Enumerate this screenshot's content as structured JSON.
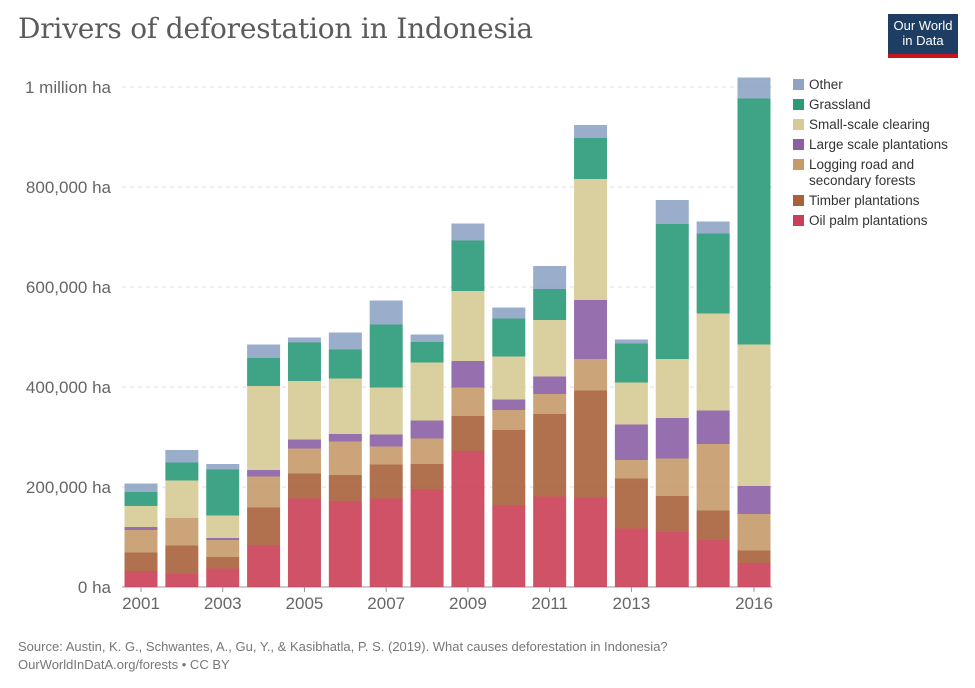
{
  "header": {
    "title": "Drivers of deforestation in Indonesia"
  },
  "logo": {
    "line1": "Our World",
    "line2": "in Data"
  },
  "footer": {
    "source": "Source: Austin, K. G., Schwantes, A., Gu, Y., & Kasibhatla, P. S. (2019). What causes deforestation in Indonesia?",
    "link": "OurWorldInDatA.org/forests • CC BY"
  },
  "chart_data": {
    "type": "bar",
    "stacked": true,
    "categories": [
      "2001",
      "2002",
      "2003",
      "2004",
      "2005",
      "2006",
      "2007",
      "2008",
      "2009",
      "2010",
      "2011",
      "2012",
      "2013",
      "2014",
      "2015",
      "2016"
    ],
    "x_tick_labels": [
      "2001",
      "2003",
      "2005",
      "2007",
      "2009",
      "2011",
      "2013",
      "2016"
    ],
    "y_ticks": [
      {
        "value": 0,
        "label": "0 ha"
      },
      {
        "value": 200000,
        "label": "200,000 ha"
      },
      {
        "value": 400000,
        "label": "400,000 ha"
      },
      {
        "value": 600000,
        "label": "600,000 ha"
      },
      {
        "value": 800000,
        "label": "800,000 ha"
      },
      {
        "value": 1000000,
        "label": "1 million ha"
      }
    ],
    "ylim": [
      0,
      1000000
    ],
    "grid": "horizontal dashed",
    "legend_position": "right",
    "series": [
      {
        "name": "Oil palm plantations",
        "color": "#ca3f57",
        "values": [
          32000,
          26000,
          37000,
          84000,
          177000,
          172000,
          177000,
          196000,
          272000,
          164000,
          181000,
          179000,
          117000,
          110000,
          94000,
          48000
        ]
      },
      {
        "name": "Timber plantations",
        "color": "#a9613b",
        "values": [
          37000,
          57000,
          23000,
          75000,
          50000,
          52000,
          68000,
          50000,
          70000,
          150000,
          165000,
          214000,
          100000,
          72000,
          59000,
          25000
        ]
      },
      {
        "name": "Logging road and secondary forests",
        "color": "#c79a6a",
        "values": [
          45000,
          55000,
          34000,
          62000,
          50000,
          67000,
          36000,
          51000,
          57000,
          40000,
          40000,
          63000,
          37000,
          75000,
          133000,
          73000
        ]
      },
      {
        "name": "Large scale plantations",
        "color": "#8b5fa5",
        "values": [
          6000,
          0,
          4000,
          13000,
          18000,
          15000,
          24000,
          36000,
          53000,
          21000,
          35000,
          118000,
          71000,
          81000,
          67000,
          56000
        ]
      },
      {
        "name": "Small-scale clearing",
        "color": "#d6cb95",
        "values": [
          42000,
          75000,
          45000,
          168000,
          117000,
          111000,
          94000,
          116000,
          140000,
          86000,
          113000,
          242000,
          84000,
          118000,
          194000,
          283000
        ]
      },
      {
        "name": "Grassland",
        "color": "#2a9a78",
        "values": [
          28000,
          36000,
          92000,
          56000,
          77000,
          58000,
          126000,
          41000,
          101000,
          76000,
          62000,
          82000,
          78000,
          270000,
          160000,
          492000
        ]
      },
      {
        "name": "Other",
        "color": "#8fa4c4",
        "values": [
          17000,
          25000,
          11000,
          27000,
          10000,
          34000,
          48000,
          15000,
          34000,
          22000,
          46000,
          26000,
          8000,
          48000,
          24000,
          42000
        ]
      }
    ],
    "legend_order": [
      "Other",
      "Grassland",
      "Small-scale clearing",
      "Large scale plantations",
      "Logging road and secondary forests",
      "Timber plantations",
      "Oil palm plantations"
    ]
  }
}
